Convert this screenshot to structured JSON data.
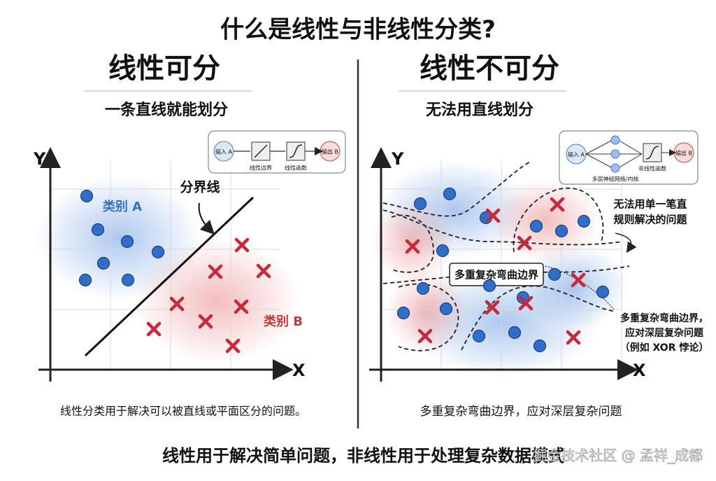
{
  "title": "什么是线性与非线性分类?",
  "left": {
    "heading": "线性可分",
    "subheading": "一条直线就能划分",
    "flow": [
      "输入 A",
      "线性边界",
      "线性函数",
      "输出 B"
    ],
    "y_axis": "Y",
    "x_axis": "X",
    "class_a": "类别 A",
    "class_b": "类别 B",
    "boundary": "分界线",
    "caption": "线性分类用于解决可以被直线或平面区分的问题。"
  },
  "right": {
    "heading": "线性不可分",
    "subheading": "无法用直线划分",
    "flow": [
      "输入 A",
      "多层神经网络/内核",
      "非线性函数",
      "输出 B"
    ],
    "y_axis": "Y",
    "x_axis": "X",
    "boundary_box": "多重复杂弯曲边界",
    "note_top": [
      "无法用单一笔直",
      "规则解决的问题"
    ],
    "note_bottom": [
      "多重复杂弯曲边界，",
      "应对深层复杂问题",
      "（例如 XOR 悖论）"
    ],
    "caption": "多重复杂弯曲边界，应对深层复杂问题"
  },
  "footer": "线性用于解决简单问题，非线性用于处理复杂数据模式",
  "watermark": "掘金技术社区 @ 孟祥_成都"
}
